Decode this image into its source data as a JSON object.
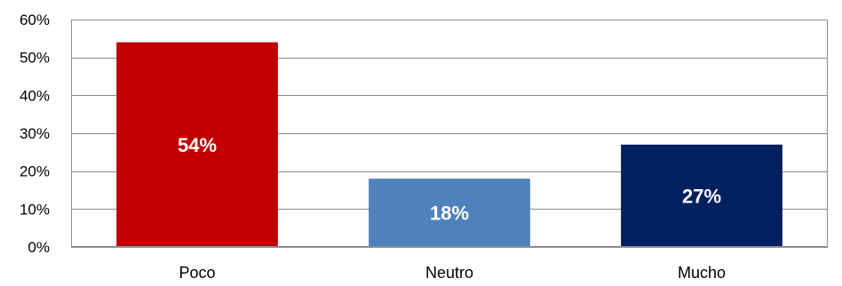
{
  "chart_data": {
    "type": "bar",
    "categories": [
      "Poco",
      "Neutro",
      "Mucho"
    ],
    "values": [
      54,
      18,
      27
    ],
    "data_labels": [
      "54%",
      "18%",
      "27%"
    ],
    "colors": [
      "#c00000",
      "#4f81bd",
      "#002060"
    ],
    "ylim": [
      0,
      60
    ],
    "yticks": [
      0,
      10,
      20,
      30,
      40,
      50,
      60
    ],
    "ytick_labels": [
      "0%",
      "10%",
      "20%",
      "30%",
      "40%",
      "50%",
      "60%"
    ],
    "grid": true,
    "legend": "none"
  }
}
